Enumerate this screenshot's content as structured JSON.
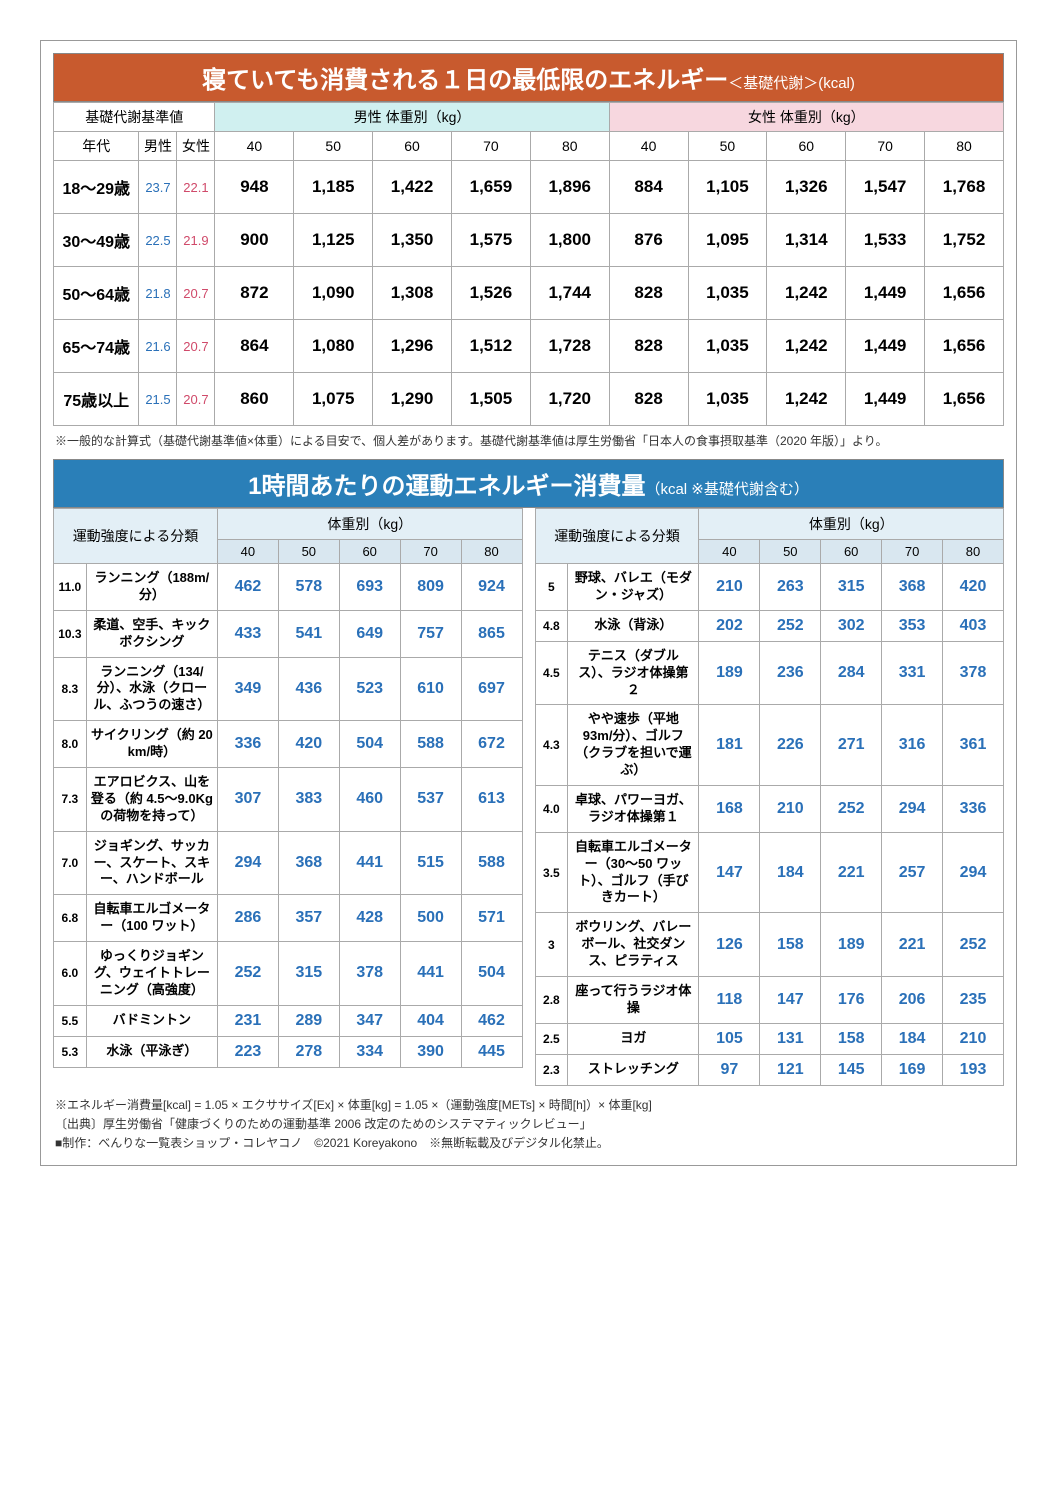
{
  "bmr": {
    "title_main": "寝ていても消費される１日の最低限のエネルギー",
    "title_sub": "＜基礎代謝＞(kcal)",
    "header_base": "基礎代謝基準値",
    "header_age": "年代",
    "header_male_col": "男性",
    "header_female_col": "女性",
    "header_male_weight": "男性 体重別（kg）",
    "header_female_weight": "女性 体重別（kg）",
    "weights": [
      "40",
      "50",
      "60",
      "70",
      "80"
    ],
    "rows": [
      {
        "age": "18～29歳",
        "bmr_m": "23.7",
        "bmr_f": "22.1",
        "m": [
          "948",
          "1,185",
          "1,422",
          "1,659",
          "1,896"
        ],
        "f": [
          "884",
          "1,105",
          "1,326",
          "1,547",
          "1,768"
        ]
      },
      {
        "age": "30～49歳",
        "bmr_m": "22.5",
        "bmr_f": "21.9",
        "m": [
          "900",
          "1,125",
          "1,350",
          "1,575",
          "1,800"
        ],
        "f": [
          "876",
          "1,095",
          "1,314",
          "1,533",
          "1,752"
        ]
      },
      {
        "age": "50～64歳",
        "bmr_m": "21.8",
        "bmr_f": "20.7",
        "m": [
          "872",
          "1,090",
          "1,308",
          "1,526",
          "1,744"
        ],
        "f": [
          "828",
          "1,035",
          "1,242",
          "1,449",
          "1,656"
        ]
      },
      {
        "age": "65～74歳",
        "bmr_m": "21.6",
        "bmr_f": "20.7",
        "m": [
          "864",
          "1,080",
          "1,296",
          "1,512",
          "1,728"
        ],
        "f": [
          "828",
          "1,035",
          "1,242",
          "1,449",
          "1,656"
        ]
      },
      {
        "age": "75歳以上",
        "bmr_m": "21.5",
        "bmr_f": "20.7",
        "m": [
          "860",
          "1,075",
          "1,290",
          "1,505",
          "1,720"
        ],
        "f": [
          "828",
          "1,035",
          "1,242",
          "1,449",
          "1,656"
        ]
      }
    ],
    "note": "※一般的な計算式（基礎代謝基準値×体重）による目安で、個人差があります。基礎代謝基準値は厚生労働省「日本人の食事摂取基準（2020 年版）」より。"
  },
  "exercise": {
    "title_main": "1時間あたりの運動エネルギー消費量",
    "title_sub": "（kcal ※基礎代謝含む）",
    "header_category": "運動強度による分類",
    "header_weight": "体重別（kg）",
    "weights": [
      "40",
      "50",
      "60",
      "70",
      "80"
    ],
    "left": [
      {
        "i": "11.0",
        "a": "ランニング（188m/分）",
        "v": [
          "462",
          "578",
          "693",
          "809",
          "924"
        ]
      },
      {
        "i": "10.3",
        "a": "柔道、空手、キックボクシング",
        "v": [
          "433",
          "541",
          "649",
          "757",
          "865"
        ]
      },
      {
        "i": "8.3",
        "a": "ランニング（134/分）、水泳（クロール、ふつうの速さ）",
        "v": [
          "349",
          "436",
          "523",
          "610",
          "697"
        ]
      },
      {
        "i": "8.0",
        "a": "サイクリング（約 20 km/時）",
        "v": [
          "336",
          "420",
          "504",
          "588",
          "672"
        ]
      },
      {
        "i": "7.3",
        "a": "エアロビクス、山を登る（約 4.5～9.0Kg の荷物を持って）",
        "v": [
          "307",
          "383",
          "460",
          "537",
          "613"
        ]
      },
      {
        "i": "7.0",
        "a": "ジョギング、サッカー、スケート、スキー、ハンドボール",
        "v": [
          "294",
          "368",
          "441",
          "515",
          "588"
        ]
      },
      {
        "i": "6.8",
        "a": "自転車エルゴメーター（100 ワット）",
        "v": [
          "286",
          "357",
          "428",
          "500",
          "571"
        ]
      },
      {
        "i": "6.0",
        "a": "ゆっくりジョギング、ウェイトトレーニング（高強度）",
        "v": [
          "252",
          "315",
          "378",
          "441",
          "504"
        ]
      },
      {
        "i": "5.5",
        "a": "バドミントン",
        "v": [
          "231",
          "289",
          "347",
          "404",
          "462"
        ]
      },
      {
        "i": "5.3",
        "a": "水泳（平泳ぎ）",
        "v": [
          "223",
          "278",
          "334",
          "390",
          "445"
        ]
      }
    ],
    "right": [
      {
        "i": "5",
        "a": "野球、バレエ（モダン・ジャズ）",
        "v": [
          "210",
          "263",
          "315",
          "368",
          "420"
        ]
      },
      {
        "i": "4.8",
        "a": "水泳（背泳）",
        "v": [
          "202",
          "252",
          "302",
          "353",
          "403"
        ]
      },
      {
        "i": "4.5",
        "a": "テニス（ダブルス）、ラジオ体操第２",
        "v": [
          "189",
          "236",
          "284",
          "331",
          "378"
        ]
      },
      {
        "i": "4.3",
        "a": "やや速歩（平地 93m/分）、ゴルフ（クラブを担いで運ぶ）",
        "v": [
          "181",
          "226",
          "271",
          "316",
          "361"
        ]
      },
      {
        "i": "4.0",
        "a": "卓球、パワーヨガ、ラジオ体操第１",
        "v": [
          "168",
          "210",
          "252",
          "294",
          "336"
        ]
      },
      {
        "i": "3.5",
        "a": "自転車エルゴメーター（30～50 ワット）、ゴルフ（手びきカート）",
        "v": [
          "147",
          "184",
          "221",
          "257",
          "294"
        ]
      },
      {
        "i": "3",
        "a": "ボウリング、バレーボール、社交ダンス、ピラティス",
        "v": [
          "126",
          "158",
          "189",
          "221",
          "252"
        ]
      },
      {
        "i": "2.8",
        "a": "座って行うラジオ体操",
        "v": [
          "118",
          "147",
          "176",
          "206",
          "235"
        ]
      },
      {
        "i": "2.5",
        "a": "ヨガ",
        "v": [
          "105",
          "131",
          "158",
          "184",
          "210"
        ]
      },
      {
        "i": "2.3",
        "a": "ストレッチング",
        "v": [
          "97",
          "121",
          "145",
          "169",
          "193"
        ]
      }
    ],
    "note1": "※エネルギー消費量[kcal] = 1.05 × エクササイズ[Ex] × 体重[kg] = 1.05 ×（運動強度[METs] × 時間[h]）× 体重[kg]",
    "note2": "〔出典〕厚生労働省「健康づくりのための運動基準 2006 改定のためのシステマティックレビュー」",
    "note3": "■制作：べんりな一覧表ショップ・コレヤコノ　©2021 Koreyakono　※無断転載及びデジタル化禁止。"
  },
  "colors": {
    "orange_bg": "#c85a2e",
    "blue_bg": "#2a7fb8",
    "male_hdr": "#d0f0f0",
    "female_hdr": "#f7d7df",
    "value_blue": "#2a70b8",
    "value_pink": "#d04a6a",
    "t2_hdr": "#e3eff6",
    "t2_wcol": "#d9e7f0"
  }
}
